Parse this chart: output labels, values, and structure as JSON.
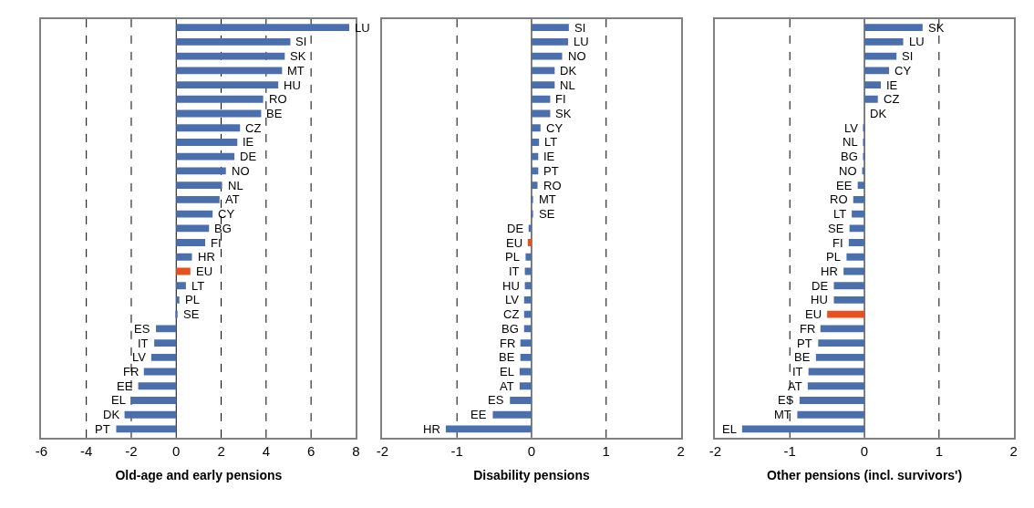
{
  "chart_data": [
    {
      "type": "bar",
      "orientation": "horizontal",
      "xlabel": "Old-age and early pensions",
      "xlim": [
        -6,
        8
      ],
      "xticks": [
        -6,
        -4,
        -2,
        0,
        2,
        4,
        6,
        8
      ],
      "grid": "x",
      "tick_labels": "x",
      "categories": [
        "LU",
        "SI",
        "SK",
        "MT",
        "HU",
        "RO",
        "BE",
        "CZ",
        "IE",
        "DE",
        "NO",
        "NL",
        "AT",
        "CY",
        "BG",
        "FI",
        "HR",
        "EU",
        "LT",
        "PL",
        "SE",
        "ES",
        "IT",
        "LV",
        "FR",
        "EE",
        "EL",
        "DK",
        "PT"
      ],
      "values": [
        7.7,
        5.08,
        4.83,
        4.71,
        4.54,
        3.87,
        3.78,
        2.84,
        2.72,
        2.59,
        2.21,
        2.04,
        1.93,
        1.62,
        1.46,
        1.29,
        0.7,
        0.63,
        0.43,
        0.14,
        0.06,
        -0.9,
        -0.98,
        -1.11,
        -1.44,
        -1.69,
        -2.0,
        -2.3,
        -2.67
      ],
      "colors": [
        "#4a6fac",
        "#4a6fac",
        "#4a6fac",
        "#4a6fac",
        "#4a6fac",
        "#4a6fac",
        "#4a6fac",
        "#4a6fac",
        "#4a6fac",
        "#4a6fac",
        "#4a6fac",
        "#4a6fac",
        "#4a6fac",
        "#4a6fac",
        "#4a6fac",
        "#4a6fac",
        "#4a6fac",
        "#e8501e",
        "#4a6fac",
        "#4a6fac",
        "#4a6fac",
        "#4a6fac",
        "#4a6fac",
        "#4a6fac",
        "#4a6fac",
        "#4a6fac",
        "#4a6fac",
        "#4a6fac",
        "#4a6fac"
      ]
    },
    {
      "type": "bar",
      "orientation": "horizontal",
      "xlabel": "Disability pensions",
      "xlim": [
        -2,
        2
      ],
      "xticks": [
        -2,
        -1,
        0,
        1,
        2
      ],
      "grid": "x",
      "tick_labels": "x",
      "categories": [
        "SI",
        "LU",
        "NO",
        "DK",
        "NL",
        "FI",
        "SK",
        "CY",
        "LT",
        "IE",
        "PT",
        "RO",
        "MT",
        "SE",
        "DE",
        "EU",
        "PL",
        "IT",
        "HU",
        "LV",
        "CZ",
        "BG",
        "FR",
        "BE",
        "EL",
        "AT",
        "ES",
        "EE",
        "HR"
      ],
      "values": [
        0.5,
        0.49,
        0.41,
        0.31,
        0.31,
        0.25,
        0.25,
        0.12,
        0.1,
        0.09,
        0.09,
        0.08,
        0.02,
        0.02,
        -0.04,
        -0.05,
        -0.08,
        -0.09,
        -0.09,
        -0.1,
        -0.1,
        -0.1,
        -0.15,
        -0.15,
        -0.16,
        -0.16,
        -0.29,
        -0.52,
        -1.15
      ],
      "colors": [
        "#4a6fac",
        "#4a6fac",
        "#4a6fac",
        "#4a6fac",
        "#4a6fac",
        "#4a6fac",
        "#4a6fac",
        "#4a6fac",
        "#4a6fac",
        "#4a6fac",
        "#4a6fac",
        "#4a6fac",
        "#4a6fac",
        "#4a6fac",
        "#4a6fac",
        "#e8501e",
        "#4a6fac",
        "#4a6fac",
        "#4a6fac",
        "#4a6fac",
        "#4a6fac",
        "#4a6fac",
        "#4a6fac",
        "#4a6fac",
        "#4a6fac",
        "#4a6fac",
        "#4a6fac",
        "#4a6fac",
        "#4a6fac"
      ]
    },
    {
      "type": "bar",
      "orientation": "horizontal",
      "xlabel": "Other pensions (incl. survivors')",
      "xlim": [
        -2,
        2
      ],
      "xticks": [
        -2,
        -1,
        0,
        1,
        2
      ],
      "grid": "x",
      "tick_labels": "x",
      "categories": [
        "SK",
        "LU",
        "SI",
        "CY",
        "IE",
        "CZ",
        "DK",
        "LV",
        "NL",
        "BG",
        "NO",
        "EE",
        "RO",
        "LT",
        "SE",
        "FI",
        "PL",
        "HR",
        "DE",
        "HU",
        "EU",
        "FR",
        "PT",
        "BE",
        "IT",
        "AT",
        "ES",
        "MT",
        "EL"
      ],
      "values": [
        0.78,
        0.52,
        0.43,
        0.33,
        0.22,
        0.18,
        0,
        -0.01,
        -0.01,
        -0.01,
        -0.03,
        -0.09,
        -0.15,
        -0.17,
        -0.2,
        -0.21,
        -0.24,
        -0.28,
        -0.41,
        -0.41,
        -0.5,
        -0.59,
        -0.62,
        -0.65,
        -0.75,
        -0.76,
        -0.87,
        -0.9,
        -1.64
      ],
      "colors": [
        "#4a6fac",
        "#4a6fac",
        "#4a6fac",
        "#4a6fac",
        "#4a6fac",
        "#4a6fac",
        "#4a6fac",
        "#4a6fac",
        "#4a6fac",
        "#4a6fac",
        "#4a6fac",
        "#4a6fac",
        "#4a6fac",
        "#4a6fac",
        "#4a6fac",
        "#4a6fac",
        "#4a6fac",
        "#4a6fac",
        "#4a6fac",
        "#4a6fac",
        "#e8501e",
        "#4a6fac",
        "#4a6fac",
        "#4a6fac",
        "#4a6fac",
        "#4a6fac",
        "#4a6fac",
        "#4a6fac",
        "#4a6fac"
      ]
    }
  ]
}
